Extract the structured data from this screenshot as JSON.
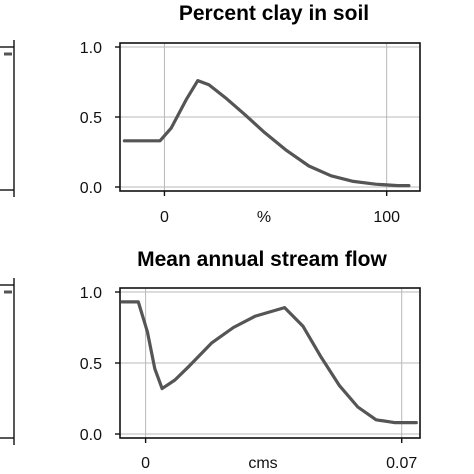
{
  "chart_data": [
    {
      "type": "line",
      "title": "Percent clay in soil",
      "xlabel": "%",
      "ylabel": "",
      "xlim": [
        -20,
        115
      ],
      "ylim": [
        0,
        1
      ],
      "x_ticks": [
        0,
        100
      ],
      "x_tick_labels": [
        "0",
        "100"
      ],
      "y_ticks": [
        0,
        0.5,
        1
      ],
      "y_tick_labels": [
        "0.0",
        "0.5",
        "1.0"
      ],
      "grid": true,
      "x": [
        -18,
        -2,
        3,
        10,
        15,
        20,
        28,
        36,
        45,
        55,
        65,
        75,
        85,
        95,
        105,
        110
      ],
      "y": [
        0.33,
        0.33,
        0.42,
        0.63,
        0.76,
        0.73,
        0.63,
        0.52,
        0.39,
        0.26,
        0.15,
        0.08,
        0.04,
        0.02,
        0.01,
        0.01
      ]
    },
    {
      "type": "line",
      "title": "Mean annual stream flow",
      "xlabel": "cms",
      "ylabel": "",
      "xlim": [
        -0.007,
        0.075
      ],
      "ylim": [
        0,
        1
      ],
      "x_ticks": [
        0,
        0.07
      ],
      "x_tick_labels": [
        "0",
        "0.07"
      ],
      "y_ticks": [
        0,
        0.5,
        1
      ],
      "y_tick_labels": [
        "0.0",
        "0.5",
        "1.0"
      ],
      "grid": true,
      "x": [
        -0.0065,
        -0.002,
        0.0005,
        0.0025,
        0.0045,
        0.008,
        0.012,
        0.018,
        0.024,
        0.03,
        0.038,
        0.043,
        0.048,
        0.053,
        0.058,
        0.063,
        0.068,
        0.074
      ],
      "y": [
        0.93,
        0.93,
        0.72,
        0.46,
        0.32,
        0.38,
        0.48,
        0.64,
        0.75,
        0.83,
        0.89,
        0.76,
        0.54,
        0.34,
        0.19,
        0.1,
        0.08,
        0.08
      ]
    }
  ],
  "left_partial": {
    "top_right_value": 0.93,
    "bottom_right_value": 0.93
  }
}
